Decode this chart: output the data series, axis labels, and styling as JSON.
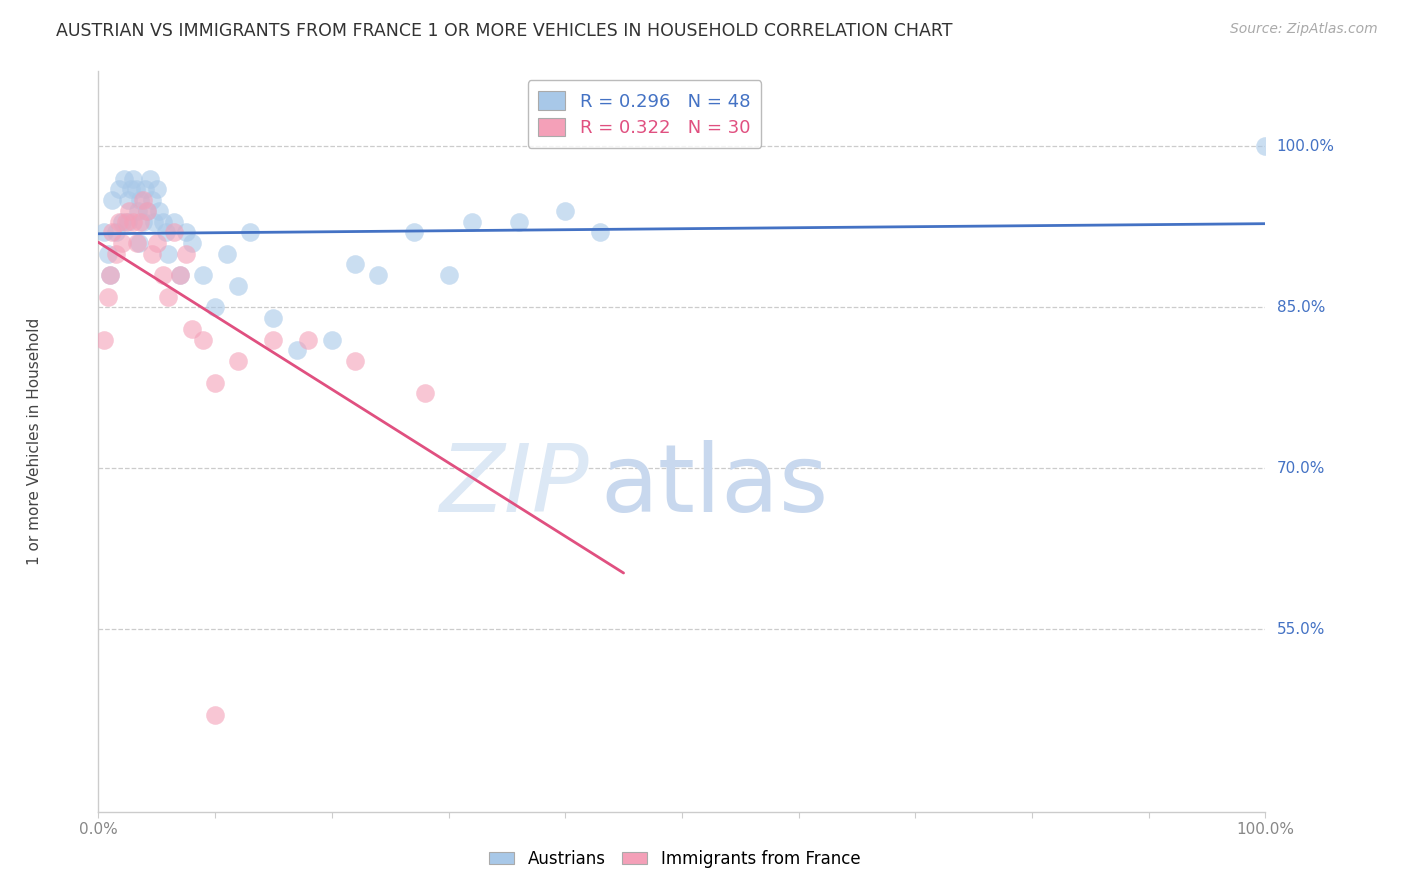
{
  "title": "AUSTRIAN VS IMMIGRANTS FROM FRANCE 1 OR MORE VEHICLES IN HOUSEHOLD CORRELATION CHART",
  "source": "Source: ZipAtlas.com",
  "ylabel": "1 or more Vehicles in Household",
  "blue_label": "Austrians",
  "pink_label": "Immigrants from France",
  "blue_R": 0.296,
  "blue_N": 48,
  "pink_R": 0.322,
  "pink_N": 30,
  "blue_color": "#a8c8e8",
  "pink_color": "#f4a0b8",
  "blue_line_color": "#4472c4",
  "pink_line_color": "#e05080",
  "right_axis_color": "#4472c4",
  "watermark_zip_color": "#dce8f5",
  "watermark_atlas_color": "#c8d8ee",
  "watermark_text_zip": "ZIP",
  "watermark_text_atlas": "atlas",
  "xlim": [
    0.0,
    1.0
  ],
  "ylim": [
    0.38,
    1.07
  ],
  "right_yticks": [
    0.55,
    0.7,
    0.85,
    1.0
  ],
  "right_yticklabels": [
    "55.0%",
    "70.0%",
    "85.0%",
    "100.0%"
  ],
  "blue_x": [
    0.005,
    0.008,
    0.01,
    0.012,
    0.015,
    0.018,
    0.02,
    0.022,
    0.025,
    0.025,
    0.028,
    0.03,
    0.032,
    0.034,
    0.035,
    0.036,
    0.038,
    0.04,
    0.042,
    0.044,
    0.046,
    0.048,
    0.05,
    0.052,
    0.055,
    0.058,
    0.06,
    0.065,
    0.07,
    0.075,
    0.08,
    0.09,
    0.1,
    0.11,
    0.12,
    0.13,
    0.15,
    0.17,
    0.2,
    0.22,
    0.24,
    0.27,
    0.3,
    0.32,
    0.36,
    0.4,
    0.43,
    1.0
  ],
  "blue_y": [
    0.92,
    0.9,
    0.88,
    0.95,
    0.92,
    0.96,
    0.93,
    0.97,
    0.95,
    0.93,
    0.96,
    0.97,
    0.96,
    0.94,
    0.91,
    0.95,
    0.93,
    0.96,
    0.94,
    0.97,
    0.95,
    0.93,
    0.96,
    0.94,
    0.93,
    0.92,
    0.9,
    0.93,
    0.88,
    0.92,
    0.91,
    0.88,
    0.85,
    0.9,
    0.87,
    0.92,
    0.84,
    0.81,
    0.82,
    0.89,
    0.88,
    0.92,
    0.88,
    0.93,
    0.93,
    0.94,
    0.92,
    1.0
  ],
  "pink_x": [
    0.005,
    0.008,
    0.01,
    0.012,
    0.015,
    0.018,
    0.02,
    0.024,
    0.026,
    0.03,
    0.033,
    0.036,
    0.038,
    0.042,
    0.046,
    0.05,
    0.055,
    0.06,
    0.065,
    0.07,
    0.075,
    0.08,
    0.09,
    0.1,
    0.12,
    0.15,
    0.18,
    0.22,
    0.28,
    0.1
  ],
  "pink_y": [
    0.82,
    0.86,
    0.88,
    0.92,
    0.9,
    0.93,
    0.91,
    0.93,
    0.94,
    0.93,
    0.91,
    0.93,
    0.95,
    0.94,
    0.9,
    0.91,
    0.88,
    0.86,
    0.92,
    0.88,
    0.9,
    0.83,
    0.82,
    0.78,
    0.8,
    0.82,
    0.82,
    0.8,
    0.77,
    0.47
  ]
}
